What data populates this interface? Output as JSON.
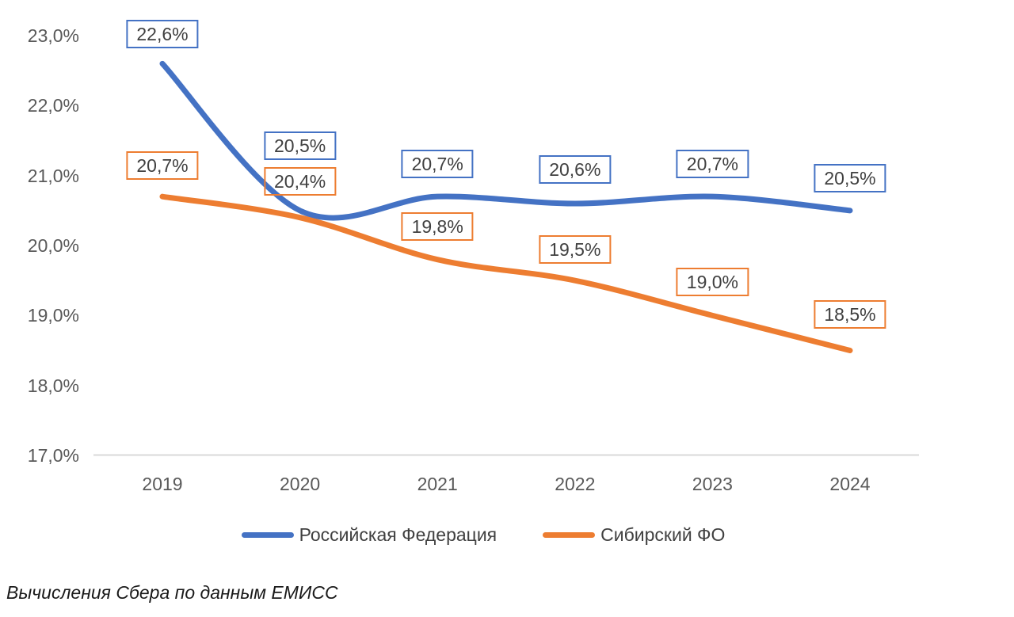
{
  "chart_data": {
    "type": "line",
    "title": "",
    "xlabel": "",
    "ylabel": "",
    "categories": [
      "2019",
      "2020",
      "2021",
      "2022",
      "2023",
      "2024"
    ],
    "series": [
      {
        "name": "Российская Федерация",
        "color": "#4472C4",
        "values": [
          22.6,
          20.5,
          20.7,
          20.6,
          20.7,
          20.5
        ],
        "labels": [
          "22,6%",
          "20,5%",
          "20,7%",
          "20,6%",
          "20,7%",
          "20,5%"
        ]
      },
      {
        "name": "Сибирский ФО",
        "color": "#ED7D31",
        "values": [
          20.7,
          20.4,
          19.8,
          19.5,
          19.0,
          18.5
        ],
        "labels": [
          "20,7%",
          "20,4%",
          "19,8%",
          "19,5%",
          "19,0%",
          "18,5%"
        ]
      }
    ],
    "y_ticks": [
      "23,0%",
      "22,0%",
      "21,0%",
      "20,0%",
      "19,0%",
      "18,0%",
      "17,0%"
    ],
    "y_tick_values": [
      23,
      22,
      21,
      20,
      19,
      18,
      17
    ],
    "ylim": [
      17,
      23
    ],
    "grid": "off",
    "axis_baseline_only": true,
    "line_style": "smooth",
    "data_labels": "boxed",
    "legend_position": "bottom",
    "axis_color": "#D9D9D9",
    "tick_text_color": "#595959",
    "label_text_color": "#404040"
  },
  "caption": "Вычисления Сбера по данным ЕМИСС"
}
